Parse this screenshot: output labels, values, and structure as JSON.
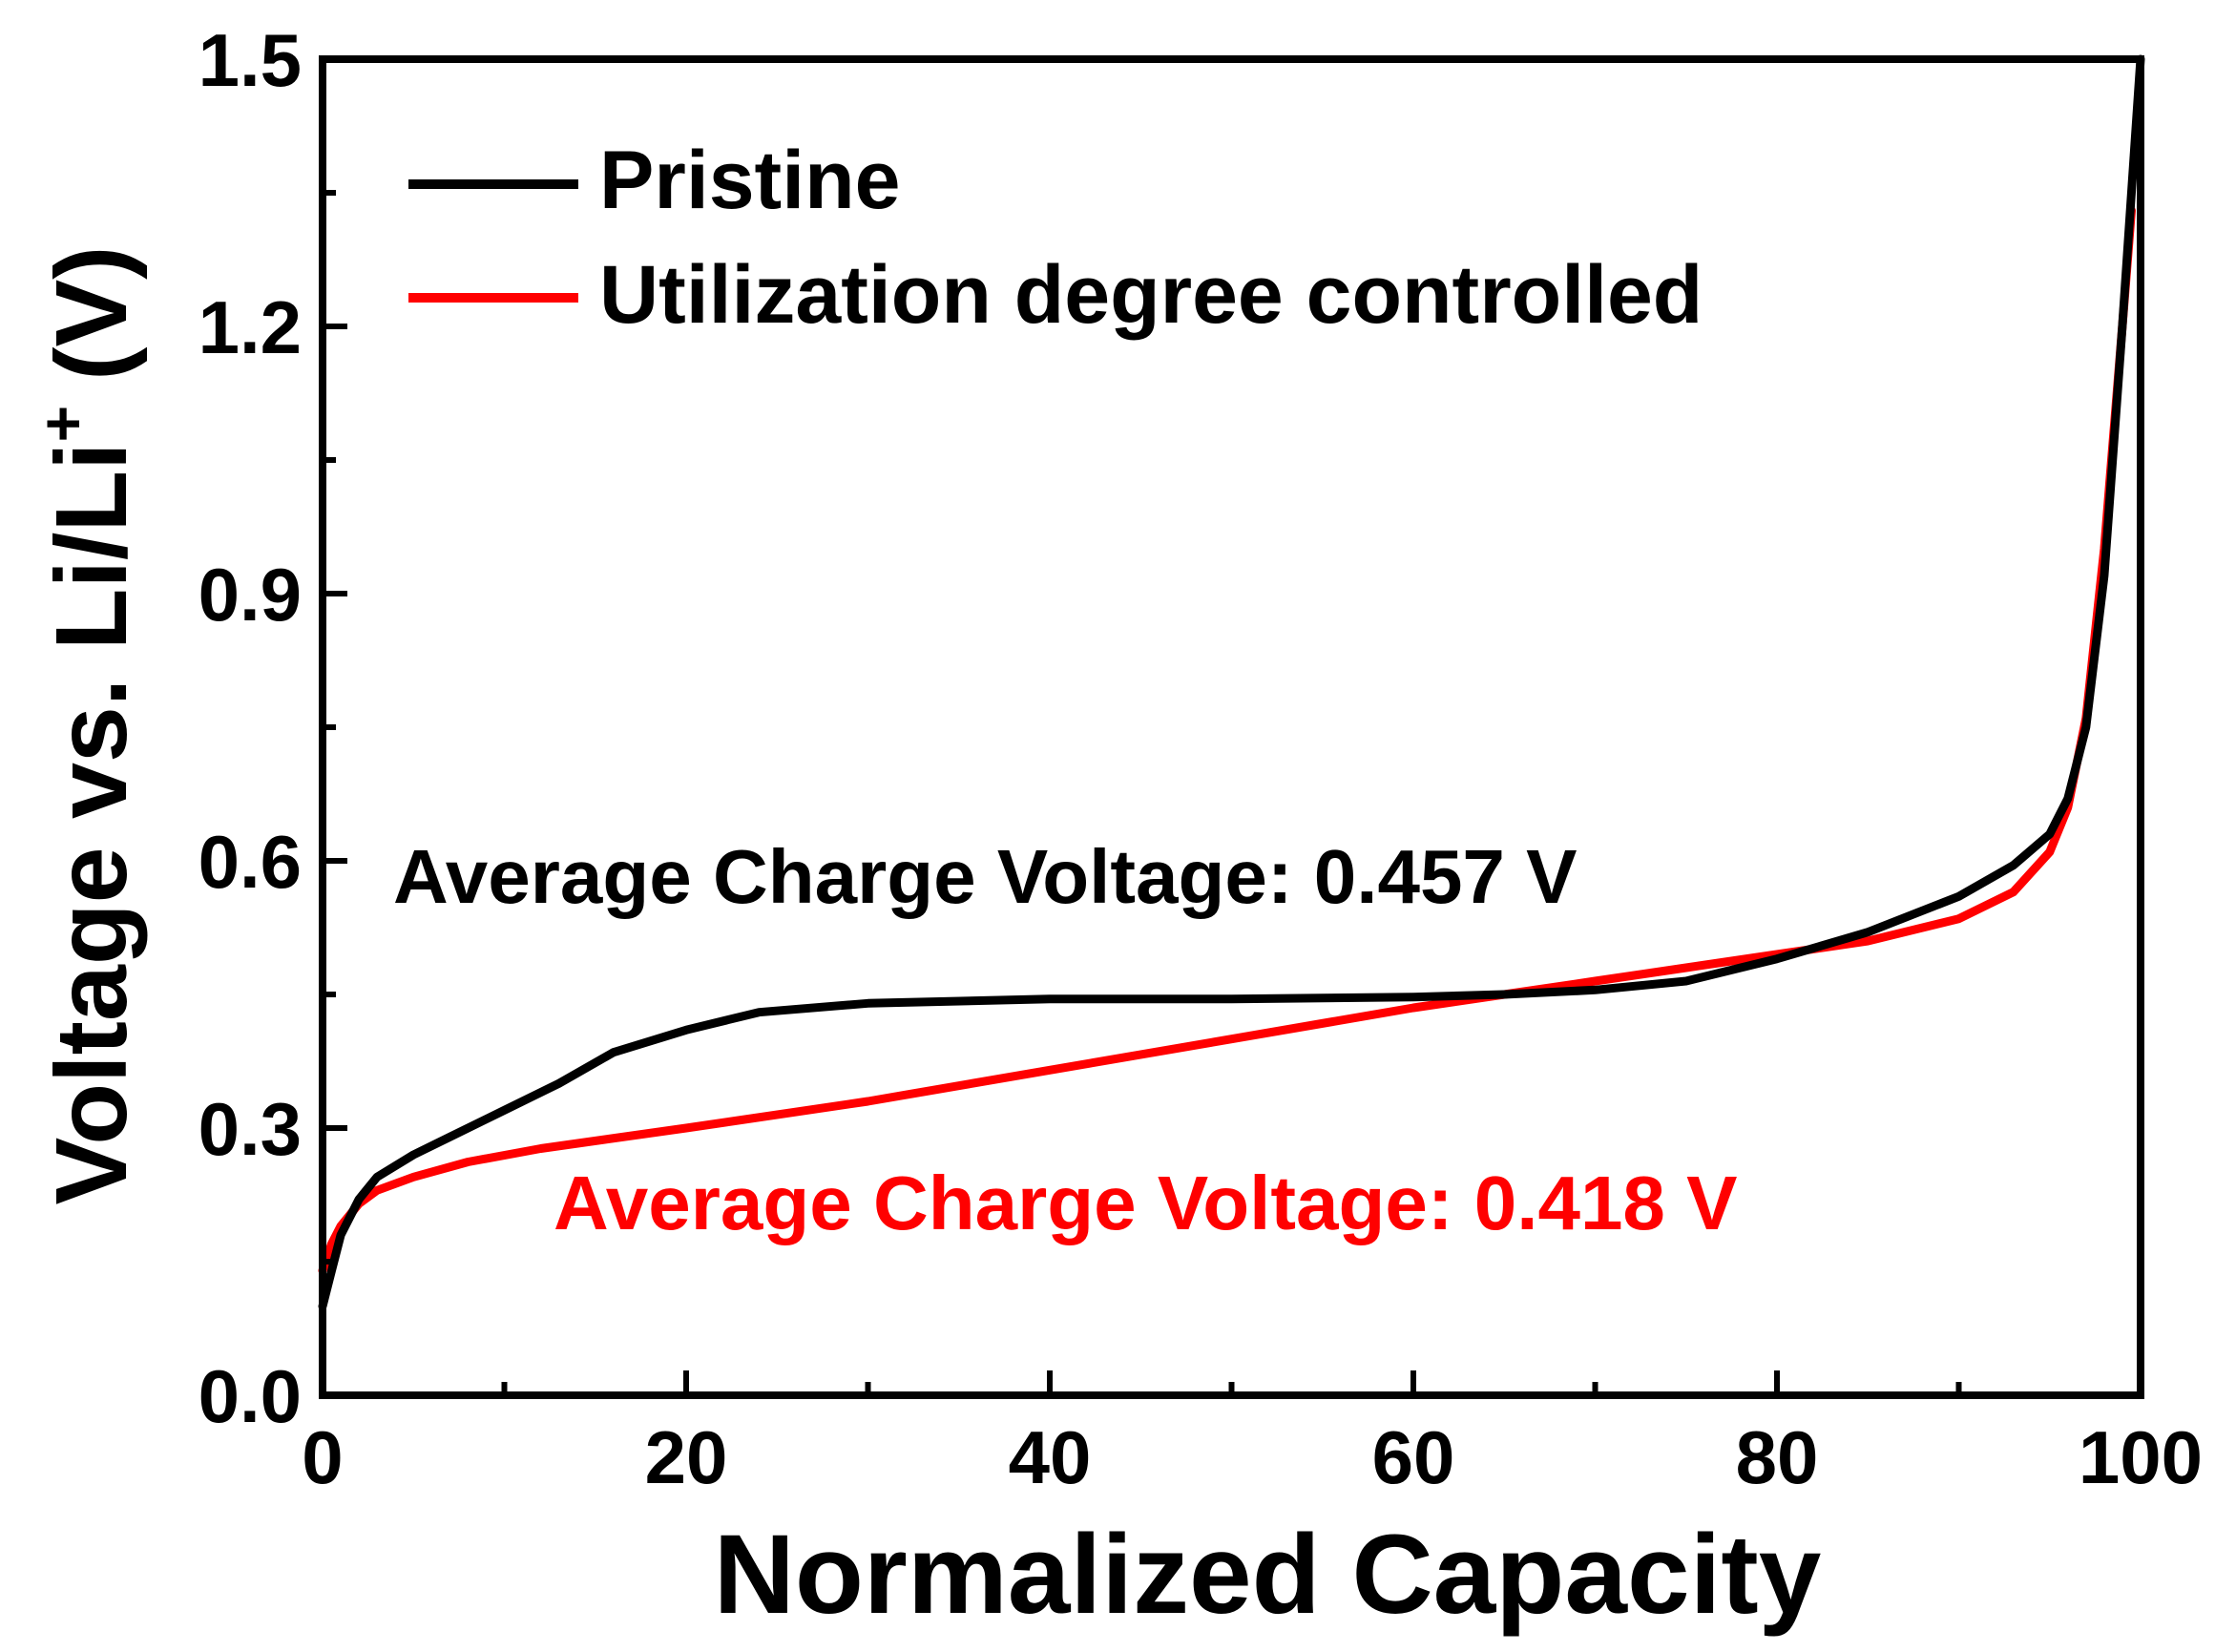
{
  "chart_data": {
    "type": "line",
    "title": "",
    "xlabel": "Normalized Capacity",
    "ylabel": {
      "main": "Voltage vs. Li/Li",
      "superscript": "+",
      "unit": "(V)"
    },
    "xlim": [
      0,
      100
    ],
    "ylim": [
      0,
      1.5
    ],
    "x_ticks": [
      "0",
      "20",
      "40",
      "60",
      "80",
      "100"
    ],
    "y_ticks": [
      "0.0",
      "0.3",
      "0.6",
      "0.9",
      "1.2",
      "1.5"
    ],
    "grid": false,
    "legend_position": "top-left",
    "series": [
      {
        "name": "Pristine",
        "color": "#000000",
        "points": [
          [
            0,
            0.1
          ],
          [
            0.5,
            0.14
          ],
          [
            1,
            0.18
          ],
          [
            2,
            0.22
          ],
          [
            3,
            0.245
          ],
          [
            5,
            0.27
          ],
          [
            7,
            0.29
          ],
          [
            10,
            0.32
          ],
          [
            13,
            0.35
          ],
          [
            16,
            0.385
          ],
          [
            20,
            0.41
          ],
          [
            24,
            0.43
          ],
          [
            30,
            0.44
          ],
          [
            40,
            0.445
          ],
          [
            50,
            0.445
          ],
          [
            60,
            0.447
          ],
          [
            65,
            0.45
          ],
          [
            70,
            0.455
          ],
          [
            75,
            0.465
          ],
          [
            80,
            0.49
          ],
          [
            85,
            0.52
          ],
          [
            90,
            0.56
          ],
          [
            93,
            0.595
          ],
          [
            95,
            0.63
          ],
          [
            96,
            0.67
          ],
          [
            97,
            0.75
          ],
          [
            98,
            0.92
          ],
          [
            99,
            1.2
          ],
          [
            100,
            1.5
          ]
        ]
      },
      {
        "name": "Utilization degree controlled",
        "color": "#ff0000",
        "points": [
          [
            0,
            0.14
          ],
          [
            0.5,
            0.17
          ],
          [
            1,
            0.19
          ],
          [
            2,
            0.215
          ],
          [
            3,
            0.23
          ],
          [
            5,
            0.245
          ],
          [
            8,
            0.262
          ],
          [
            12,
            0.277
          ],
          [
            20,
            0.3
          ],
          [
            30,
            0.33
          ],
          [
            40,
            0.365
          ],
          [
            50,
            0.4
          ],
          [
            60,
            0.435
          ],
          [
            65,
            0.45
          ],
          [
            70,
            0.465
          ],
          [
            75,
            0.48
          ],
          [
            80,
            0.495
          ],
          [
            85,
            0.51
          ],
          [
            90,
            0.535
          ],
          [
            93,
            0.565
          ],
          [
            95,
            0.61
          ],
          [
            96,
            0.66
          ],
          [
            97,
            0.76
          ],
          [
            98,
            0.95
          ],
          [
            99,
            1.2
          ],
          [
            99.5,
            1.33
          ]
        ]
      }
    ],
    "annotations": [
      {
        "text": "Average Charge Voltage: 0.457 V",
        "color": "#000000"
      },
      {
        "text": "Average Charge Voltage: 0.418 V",
        "color": "#ff0000"
      }
    ]
  }
}
